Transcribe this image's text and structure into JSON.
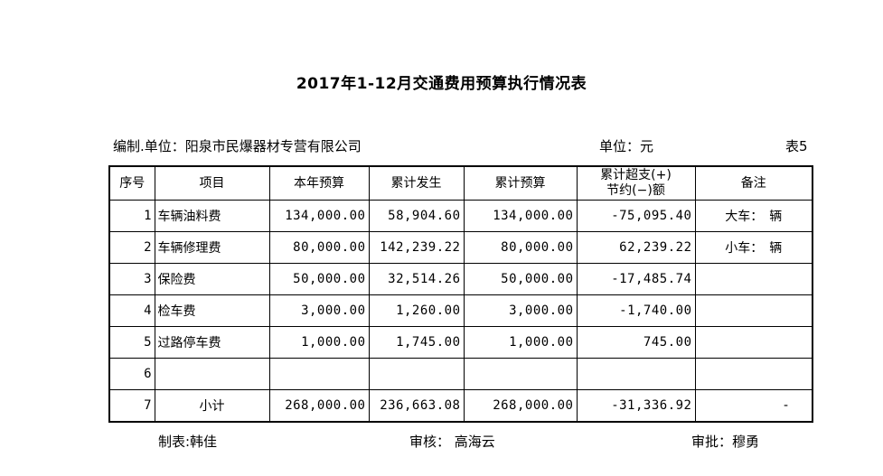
{
  "title": "2017年1-12月交通费用预算执行情况表",
  "meta": {
    "org": "编制.单位：阳泉市民爆器材专营有限公司",
    "unit": "单位：元",
    "table_no": "表5"
  },
  "table": {
    "headers": [
      "序号",
      "项目",
      "本年预算",
      "累计发生",
      "累计预算",
      "累计超支(+)\n节约(−)额",
      "备注"
    ],
    "rows": [
      {
        "no": "1",
        "item": "车辆油料费",
        "budget": "134,000.00",
        "actual": "58,904.60",
        "cum_budget": "134,000.00",
        "variance": "-75,095.40",
        "remark": "大车：　辆"
      },
      {
        "no": "2",
        "item": "车辆修理费",
        "budget": "80,000.00",
        "actual": "142,239.22",
        "cum_budget": "80,000.00",
        "variance": "62,239.22",
        "remark": "小车：　辆"
      },
      {
        "no": "3",
        "item": "保险费",
        "budget": "50,000.00",
        "actual": "32,514.26",
        "cum_budget": "50,000.00",
        "variance": "-17,485.74",
        "remark": ""
      },
      {
        "no": "4",
        "item": "检车费",
        "budget": "3,000.00",
        "actual": "1,260.00",
        "cum_budget": "3,000.00",
        "variance": "-1,740.00",
        "remark": ""
      },
      {
        "no": "5",
        "item": "过路停车费",
        "budget": "1,000.00",
        "actual": "1,745.00",
        "cum_budget": "1,000.00",
        "variance": "745.00",
        "remark": ""
      },
      {
        "no": "6",
        "item": "",
        "budget": "",
        "actual": "",
        "cum_budget": "",
        "variance": "",
        "remark": ""
      },
      {
        "no": "7",
        "item": "小计",
        "budget": "268,000.00",
        "actual": "236,663.08",
        "cum_budget": "268,000.00",
        "variance": "-31,336.92",
        "remark": "-"
      }
    ]
  },
  "footer": {
    "preparer": "制表:韩佳",
    "reviewer": "审核： 高海云",
    "approver": "审批：穆勇"
  }
}
